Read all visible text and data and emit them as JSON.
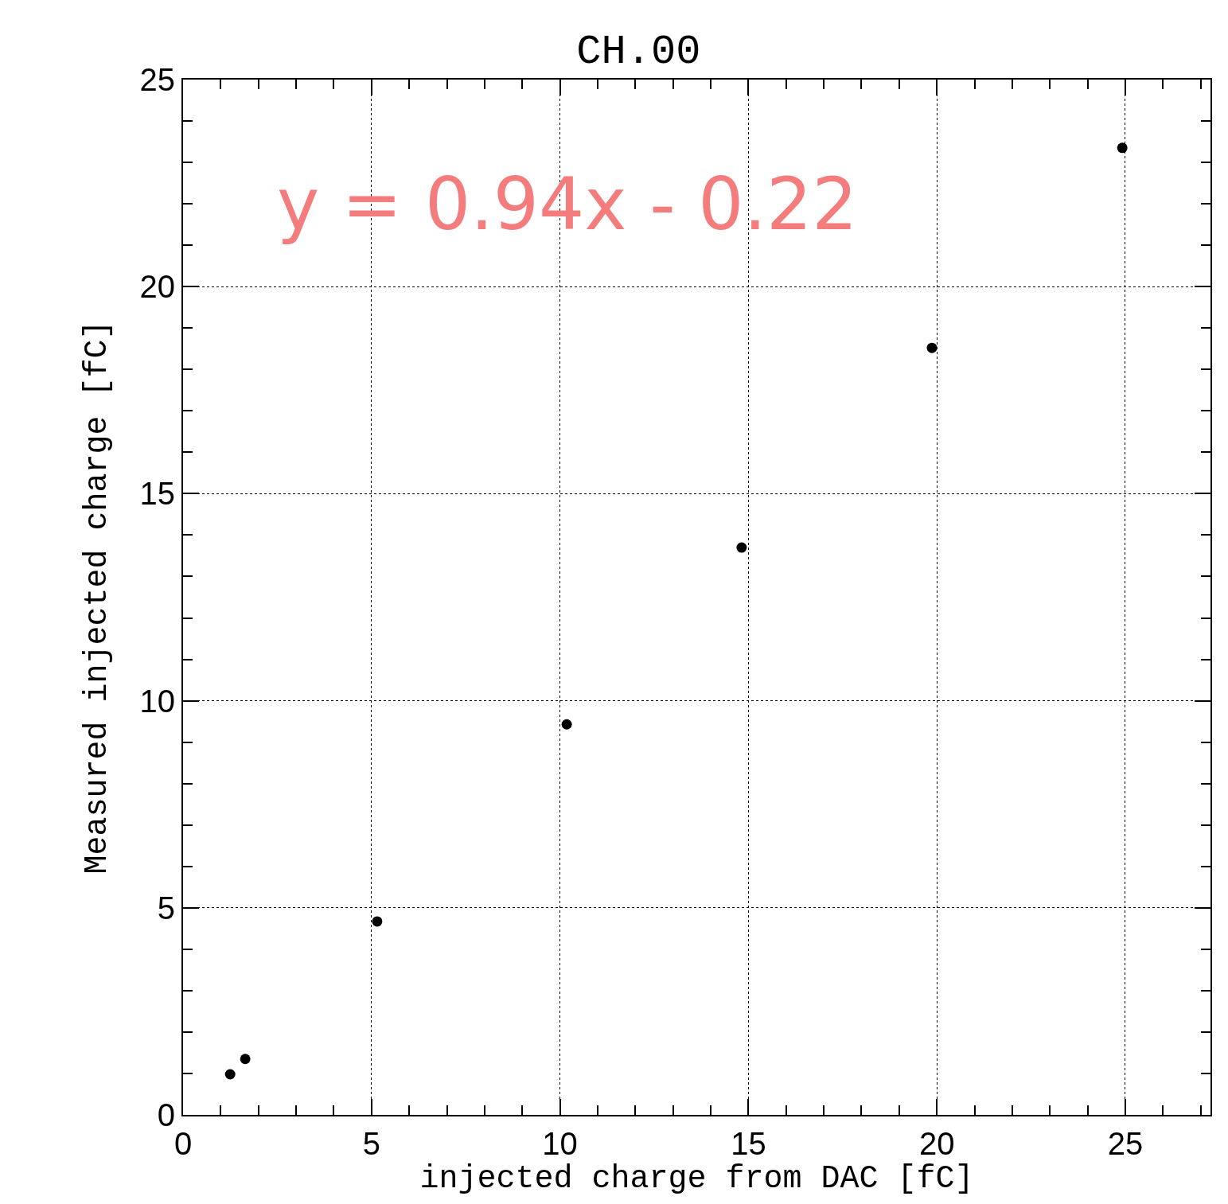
{
  "chart_data": {
    "type": "scatter",
    "title": "CH.00",
    "xlabel": "injected charge from DAC [fC]",
    "ylabel": "Measured injected charge [fC]",
    "annotations": [
      "y = 0.94x - 0.22"
    ],
    "x": [
      1.25,
      1.65,
      5.15,
      10.18,
      14.82,
      19.87,
      24.92
    ],
    "series": [
      {
        "color": "#000000",
        "values": [
          0.98,
          1.35,
          4.67,
          9.43,
          13.7,
          18.52,
          23.35
        ]
      }
    ],
    "xlim": [
      0,
      27.26
    ],
    "ylim": [
      0,
      25
    ],
    "xticks": [
      0,
      5,
      10,
      15,
      20,
      25
    ],
    "yticks": [
      0,
      5,
      10,
      15,
      20,
      25
    ],
    "grid": true,
    "marker": "circle"
  }
}
